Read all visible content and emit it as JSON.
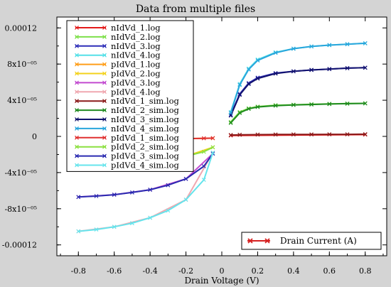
{
  "chart_data": {
    "type": "line",
    "title": "Data from multiple files",
    "xlabel": "Drain Voltage (V)",
    "ylabel": "",
    "xlim": [
      -0.92,
      0.92
    ],
    "ylim": [
      -0.000132,
      0.000132
    ],
    "x_ticks": [
      -0.8,
      -0.6,
      -0.4,
      -0.2,
      0,
      0.2,
      0.4,
      0.6,
      0.8
    ],
    "x_tick_labels": [
      "-0.8",
      "-0.6",
      "-0.4",
      "-0.2",
      "0",
      "0.2",
      "0.4",
      "0.6",
      "0.8"
    ],
    "y_ticks": [
      0.00012,
      8e-05,
      4e-05,
      0,
      -4e-05,
      -8e-05,
      -0.00012
    ],
    "y_tick_labels": [
      "0.00012",
      "8x10⁻⁰⁵",
      "4x10⁻⁰⁵",
      "0",
      "-4x10⁻⁰⁵",
      "-8x10⁻⁰⁵",
      "-0.00012"
    ],
    "grid": false,
    "legend": {
      "placement": "top-left",
      "entries": [
        {
          "name": "nIdVd_1.log",
          "color": "#e31a1a"
        },
        {
          "name": "nIdVd_2.log",
          "color": "#7ee04a"
        },
        {
          "name": "nIdVd_3.log",
          "color": "#2e2eb8"
        },
        {
          "name": "nIdVd_4.log",
          "color": "#55e0e8"
        },
        {
          "name": "pIdVd_1.log",
          "color": "#ff9e1a"
        },
        {
          "name": "pIdVd_2.log",
          "color": "#f3d21c"
        },
        {
          "name": "pIdVd_3.log",
          "color": "#c24ad0"
        },
        {
          "name": "pIdVd_4.log",
          "color": "#f0a8b0"
        },
        {
          "name": "nIdVd_1_sim.log",
          "color": "#8b1a1a"
        },
        {
          "name": "nIdVd_2_sim.log",
          "color": "#1f8a1f"
        },
        {
          "name": "nIdVd_3_sim.log",
          "color": "#12126e"
        },
        {
          "name": "nIdVd_4_sim.log",
          "color": "#29a6dc"
        },
        {
          "name": "pIdVd_1_sim.log",
          "color": "#e03030"
        },
        {
          "name": "pIdVd_2_sim.log",
          "color": "#8ce040"
        },
        {
          "name": "pIdVd_3_sim.log",
          "color": "#2a2ab0"
        },
        {
          "name": "pIdVd_4_sim.log",
          "color": "#66e4ec"
        }
      ]
    },
    "series": [
      {
        "name": "nIdVd_1.log",
        "color": "#e31a1a",
        "x": [
          0.05,
          0.8
        ],
        "y": [
          1e-06,
          2e-06
        ]
      },
      {
        "name": "nIdVd_2.log",
        "color": "#7ee04a",
        "x": [
          0.05,
          0.1,
          0.15,
          0.2,
          0.3,
          0.4,
          0.5,
          0.6,
          0.7,
          0.8
        ],
        "y": [
          1.6e-05,
          2.7e-05,
          3.1e-05,
          3.3e-05,
          3.45e-05,
          3.5e-05,
          3.55e-05,
          3.6e-05,
          3.63e-05,
          3.66e-05
        ]
      },
      {
        "name": "nIdVd_3.log",
        "color": "#2e2eb8",
        "x": [
          0.05,
          0.1,
          0.15,
          0.2,
          0.3,
          0.4,
          0.5,
          0.6,
          0.7,
          0.8
        ],
        "y": [
          2.4e-05,
          4.7e-05,
          5.9e-05,
          6.5e-05,
          7e-05,
          7.2e-05,
          7.35e-05,
          7.45e-05,
          7.55e-05,
          7.6e-05
        ]
      },
      {
        "name": "nIdVd_4.log",
        "color": "#55e0e8",
        "x": [
          0.05,
          0.1,
          0.15,
          0.2,
          0.3,
          0.4,
          0.5,
          0.6,
          0.7,
          0.8
        ],
        "y": [
          2.7e-05,
          5.8e-05,
          7.5e-05,
          8.5e-05,
          9.3e-05,
          9.7e-05,
          9.95e-05,
          0.000101,
          0.000102,
          0.000103
        ]
      },
      {
        "name": "pIdVd_1.log",
        "color": "#ff9e1a",
        "x": [
          -0.8,
          -0.6,
          -0.4,
          -0.2,
          -0.05
        ],
        "y": [
          -3e-06,
          -2.9e-06,
          -2.7e-06,
          -2.4e-06,
          -2e-06
        ]
      },
      {
        "name": "pIdVd_2.log",
        "color": "#f3d21c",
        "x": [
          -0.8,
          -0.6,
          -0.4,
          -0.2,
          -0.05
        ],
        "y": [
          -3.1e-05,
          -2.95e-05,
          -2.7e-05,
          -2.2e-05,
          -1.2e-05
        ]
      },
      {
        "name": "pIdVd_3.log",
        "color": "#c24ad0",
        "x": [
          -0.8,
          -0.6,
          -0.4,
          -0.2,
          -0.05
        ],
        "y": [
          -6.7e-05,
          -6.45e-05,
          -5.9e-05,
          -4.7e-05,
          -1.9e-05
        ]
      },
      {
        "name": "pIdVd_4.log",
        "color": "#f0a8b0",
        "x": [
          -0.8,
          -0.6,
          -0.4,
          -0.2,
          -0.05
        ],
        "y": [
          -0.000105,
          -0.0001,
          -9e-05,
          -7e-05,
          -1.8e-05
        ]
      },
      {
        "name": "nIdVd_1_sim.log",
        "color": "#8b1a1a",
        "x": [
          0.05,
          0.1,
          0.2,
          0.3,
          0.4,
          0.5,
          0.6,
          0.7,
          0.8
        ],
        "y": [
          1.5e-06,
          1.8e-06,
          2e-06,
          2.1e-06,
          2.2e-06,
          2.2e-06,
          2.3e-06,
          2.3e-06,
          2.4e-06
        ]
      },
      {
        "name": "nIdVd_2_sim.log",
        "color": "#1f8a1f",
        "x": [
          0.05,
          0.1,
          0.15,
          0.2,
          0.3,
          0.4,
          0.5,
          0.6,
          0.7,
          0.8
        ],
        "y": [
          1.5e-05,
          2.6e-05,
          3.05e-05,
          3.25e-05,
          3.4e-05,
          3.48e-05,
          3.53e-05,
          3.58e-05,
          3.62e-05,
          3.65e-05
        ]
      },
      {
        "name": "nIdVd_3_sim.log",
        "color": "#12126e",
        "x": [
          0.05,
          0.1,
          0.15,
          0.2,
          0.3,
          0.4,
          0.5,
          0.6,
          0.7,
          0.8
        ],
        "y": [
          2.3e-05,
          4.6e-05,
          5.8e-05,
          6.4e-05,
          6.95e-05,
          7.2e-05,
          7.35e-05,
          7.45e-05,
          7.55e-05,
          7.6e-05
        ]
      },
      {
        "name": "nIdVd_4_sim.log",
        "color": "#29a6dc",
        "x": [
          0.05,
          0.1,
          0.15,
          0.2,
          0.3,
          0.4,
          0.5,
          0.6,
          0.7,
          0.8
        ],
        "y": [
          2.6e-05,
          5.7e-05,
          7.4e-05,
          8.4e-05,
          9.25e-05,
          9.7e-05,
          9.95e-05,
          0.000101,
          0.000102,
          0.000103
        ]
      },
      {
        "name": "pIdVd_1_sim.log",
        "color": "#e03030",
        "x": [
          -0.8,
          -0.7,
          -0.6,
          -0.5,
          -0.4,
          -0.3,
          -0.2,
          -0.1,
          -0.05
        ],
        "y": [
          -3e-06,
          -3e-06,
          -2.9e-06,
          -2.8e-06,
          -2.7e-06,
          -2.6e-06,
          -2.4e-06,
          -2.1e-06,
          -1.9e-06
        ]
      },
      {
        "name": "pIdVd_2_sim.log",
        "color": "#8ce040",
        "x": [
          -0.8,
          -0.7,
          -0.6,
          -0.5,
          -0.4,
          -0.3,
          -0.2,
          -0.1,
          -0.05
        ],
        "y": [
          -3.1e-05,
          -3.03e-05,
          -2.95e-05,
          -2.85e-05,
          -2.7e-05,
          -2.5e-05,
          -2.2e-05,
          -1.7e-05,
          -1.2e-05
        ]
      },
      {
        "name": "pIdVd_3_sim.log",
        "color": "#2a2ab0",
        "x": [
          -0.8,
          -0.7,
          -0.6,
          -0.5,
          -0.4,
          -0.3,
          -0.2,
          -0.1,
          -0.05
        ],
        "y": [
          -6.7e-05,
          -6.6e-05,
          -6.45e-05,
          -6.2e-05,
          -5.9e-05,
          -5.4e-05,
          -4.7e-05,
          -3.3e-05,
          -1.9e-05
        ]
      },
      {
        "name": "pIdVd_4_sim.log",
        "color": "#66e4ec",
        "x": [
          -0.8,
          -0.7,
          -0.6,
          -0.5,
          -0.4,
          -0.3,
          -0.2,
          -0.1,
          -0.05
        ],
        "y": [
          -0.000105,
          -0.000103,
          -0.0001,
          -9.6e-05,
          -9e-05,
          -8.2e-05,
          -7e-05,
          -4.8e-05,
          -1.8e-05
        ]
      }
    ],
    "annotations": [
      {
        "text": "Drain Current (A)",
        "placement": "bottom-right",
        "color": "#d62020"
      }
    ]
  }
}
